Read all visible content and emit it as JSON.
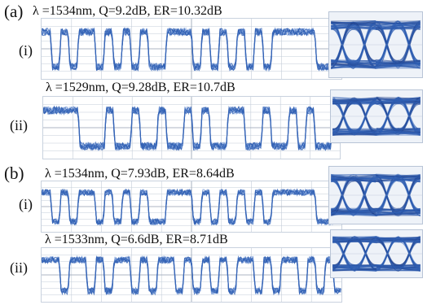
{
  "figure": {
    "panels": [
      {
        "label": "(a)",
        "traces": [
          {
            "row_label": "(i)",
            "caption": "λ =1534nm, Q=9.2dB, ER=10.32dB",
            "bits": [
              1,
              0,
              1,
              0,
              1,
              1,
              0,
              1,
              0,
              1,
              0,
              1,
              0,
              0,
              1,
              1,
              1,
              0,
              1,
              0,
              1,
              0,
              1,
              0,
              1,
              0,
              1,
              1,
              1,
              1,
              1,
              0,
              0,
              1
            ]
          },
          {
            "row_label": "(ii)",
            "caption": "λ =1529nm, Q=9.28dB, ER=10.7dB",
            "bits": [
              1,
              1,
              1,
              1,
              0,
              0,
              0,
              1,
              0,
              0,
              1,
              0,
              0,
              1,
              0,
              0,
              1,
              0,
              1,
              0,
              0,
              1,
              1,
              0,
              0,
              1,
              0,
              0,
              1,
              0,
              1,
              0,
              0,
              1
            ]
          }
        ]
      },
      {
        "label": "(b)",
        "traces": [
          {
            "row_label": "(i)",
            "caption": "λ =1534nm, Q=7.93dB, ER=8.64dB",
            "bits": [
              1,
              0,
              1,
              0,
              1,
              1,
              0,
              1,
              0,
              1,
              0,
              1,
              0,
              0,
              1,
              1,
              1,
              0,
              1,
              0,
              1,
              0,
              1,
              0,
              1,
              0,
              1,
              1,
              1,
              1,
              1,
              0,
              0,
              1
            ]
          },
          {
            "row_label": "(ii)",
            "caption": "λ =1533nm, Q=6.6dB, ER=8.71dB",
            "bits": [
              1,
              1,
              0,
              1,
              1,
              0,
              1,
              0,
              1,
              1,
              0,
              1,
              0,
              1,
              1,
              0,
              1,
              0,
              1,
              0,
              1,
              0,
              1,
              1,
              0,
              1,
              0,
              1,
              1,
              0,
              1,
              0,
              1,
              0
            ]
          }
        ]
      }
    ]
  },
  "colors": {
    "trace": "#2f5fb3",
    "trace_light": "#7fa2dc",
    "grid": "#c3ccd8",
    "eye_bg": "#eef2f8"
  }
}
